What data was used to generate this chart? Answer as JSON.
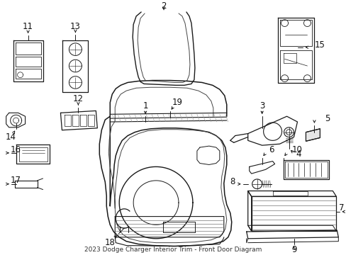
{
  "title": "2023 Dodge Charger Interior Trim - Front Door Diagram",
  "bg_color": "#ffffff",
  "line_color": "#1a1a1a",
  "text_color": "#111111",
  "font_size": 8.5
}
